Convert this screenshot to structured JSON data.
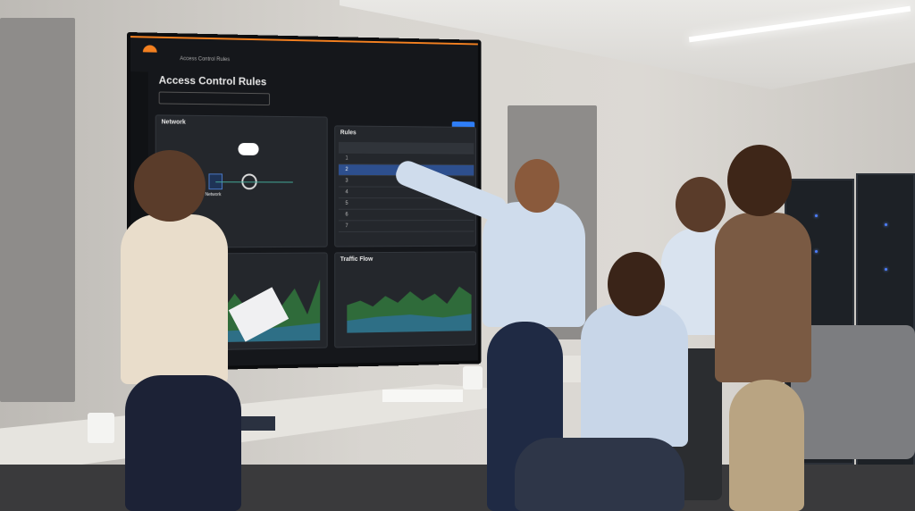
{
  "screen": {
    "breadcrumb": "Access Control Rules",
    "title": "Access Control Rules",
    "network_panel": {
      "heading": "Network",
      "node_label": "Network"
    },
    "rules_panel": {
      "heading": "Rules",
      "row_numbers": [
        "1",
        "2",
        "3",
        "4",
        "5",
        "6",
        "7"
      ],
      "selected_row": 2
    },
    "traffic_panel": {
      "heading": "Traffic Flow"
    },
    "accent_color": "#f38020",
    "primary_button_color": "#2f7ef7"
  }
}
